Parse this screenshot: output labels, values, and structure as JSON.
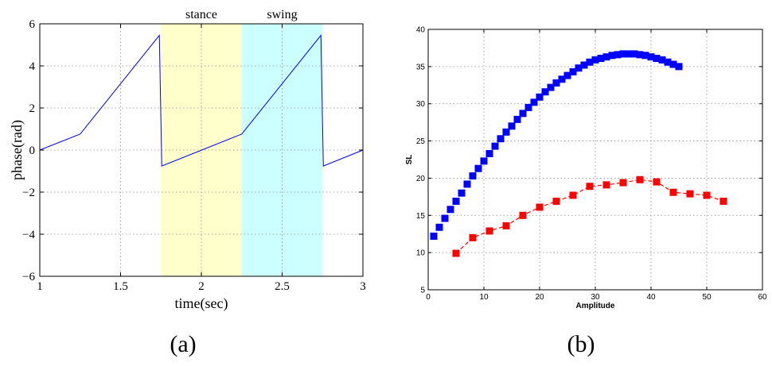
{
  "chart_data": [
    {
      "type": "line",
      "xlabel": "time(sec)",
      "ylabel": "phase(rad)",
      "xlim": [
        1,
        3
      ],
      "ylim": [
        -6,
        6
      ],
      "xticks": [
        1,
        1.5,
        2,
        2.5,
        3
      ],
      "xtick_labels": [
        "1",
        "1.5",
        "2",
        "2.5",
        "3"
      ],
      "yticks": [
        -6,
        -4,
        -2,
        0,
        2,
        4,
        6
      ],
      "ytick_labels": [
        "−6",
        "−4",
        "−2",
        "0",
        "2",
        "4",
        "6"
      ],
      "grid": true,
      "regions": [
        {
          "label": "stance",
          "x": [
            1.75,
            2.25
          ],
          "color": "#ffffcc"
        },
        {
          "label": "swing",
          "x": [
            2.25,
            2.75
          ],
          "color": "#ccffff"
        }
      ],
      "series": [
        {
          "color": "#0000ff",
          "x": [
            1.0,
            1.25,
            1.74,
            1.755,
            2.25,
            2.74,
            2.755,
            3.0
          ],
          "y": [
            0.0,
            0.76,
            5.45,
            -0.76,
            0.76,
            5.45,
            -0.76,
            0.0
          ]
        }
      ],
      "caption": "(a)"
    },
    {
      "type": "scatter",
      "xlabel": "Amplitude",
      "ylabel": "SL",
      "xlim": [
        0,
        60
      ],
      "ylim": [
        5,
        40
      ],
      "xticks": [
        0,
        10,
        20,
        30,
        40,
        50,
        60
      ],
      "xtick_labels": [
        "0",
        "10",
        "20",
        "30",
        "40",
        "50",
        "60"
      ],
      "yticks": [
        5,
        10,
        15,
        20,
        25,
        30,
        35,
        40
      ],
      "ytick_labels": [
        "5",
        "10",
        "15",
        "20",
        "25",
        "30",
        "35",
        "40"
      ],
      "grid": true,
      "series": [
        {
          "color": "#0000ff",
          "marker": "square",
          "line": false,
          "x": [
            1,
            2,
            3,
            4,
            5,
            6,
            7,
            8,
            9,
            10,
            11,
            12,
            13,
            14,
            15,
            16,
            17,
            18,
            19,
            20,
            21,
            22,
            23,
            24,
            25,
            26,
            27,
            28,
            29,
            30,
            31,
            32,
            33,
            34,
            35,
            36,
            37,
            38,
            39,
            40,
            41,
            42,
            43,
            44,
            45
          ],
          "y": [
            12.2,
            13.4,
            14.6,
            15.8,
            16.9,
            18.0,
            19.2,
            20.3,
            21.3,
            22.3,
            23.3,
            24.3,
            25.3,
            26.2,
            27.0,
            27.9,
            28.7,
            29.5,
            30.2,
            30.9,
            31.6,
            32.2,
            32.8,
            33.3,
            33.8,
            34.3,
            34.8,
            35.2,
            35.6,
            35.9,
            36.1,
            36.3,
            36.5,
            36.6,
            36.7,
            36.7,
            36.7,
            36.6,
            36.5,
            36.3,
            36.1,
            35.9,
            35.6,
            35.3,
            35.0
          ]
        },
        {
          "color": "#ff0000",
          "marker": "square",
          "line": "dashed",
          "x": [
            5,
            8,
            11,
            14,
            17,
            20,
            23,
            26,
            29,
            32,
            35,
            38,
            41,
            44,
            47,
            50,
            53
          ],
          "y": [
            9.9,
            12.0,
            12.9,
            13.6,
            15.0,
            16.1,
            16.9,
            17.7,
            18.9,
            19.1,
            19.4,
            19.8,
            19.5,
            18.1,
            17.9,
            17.7,
            16.9
          ]
        }
      ],
      "caption": "(b)"
    }
  ]
}
